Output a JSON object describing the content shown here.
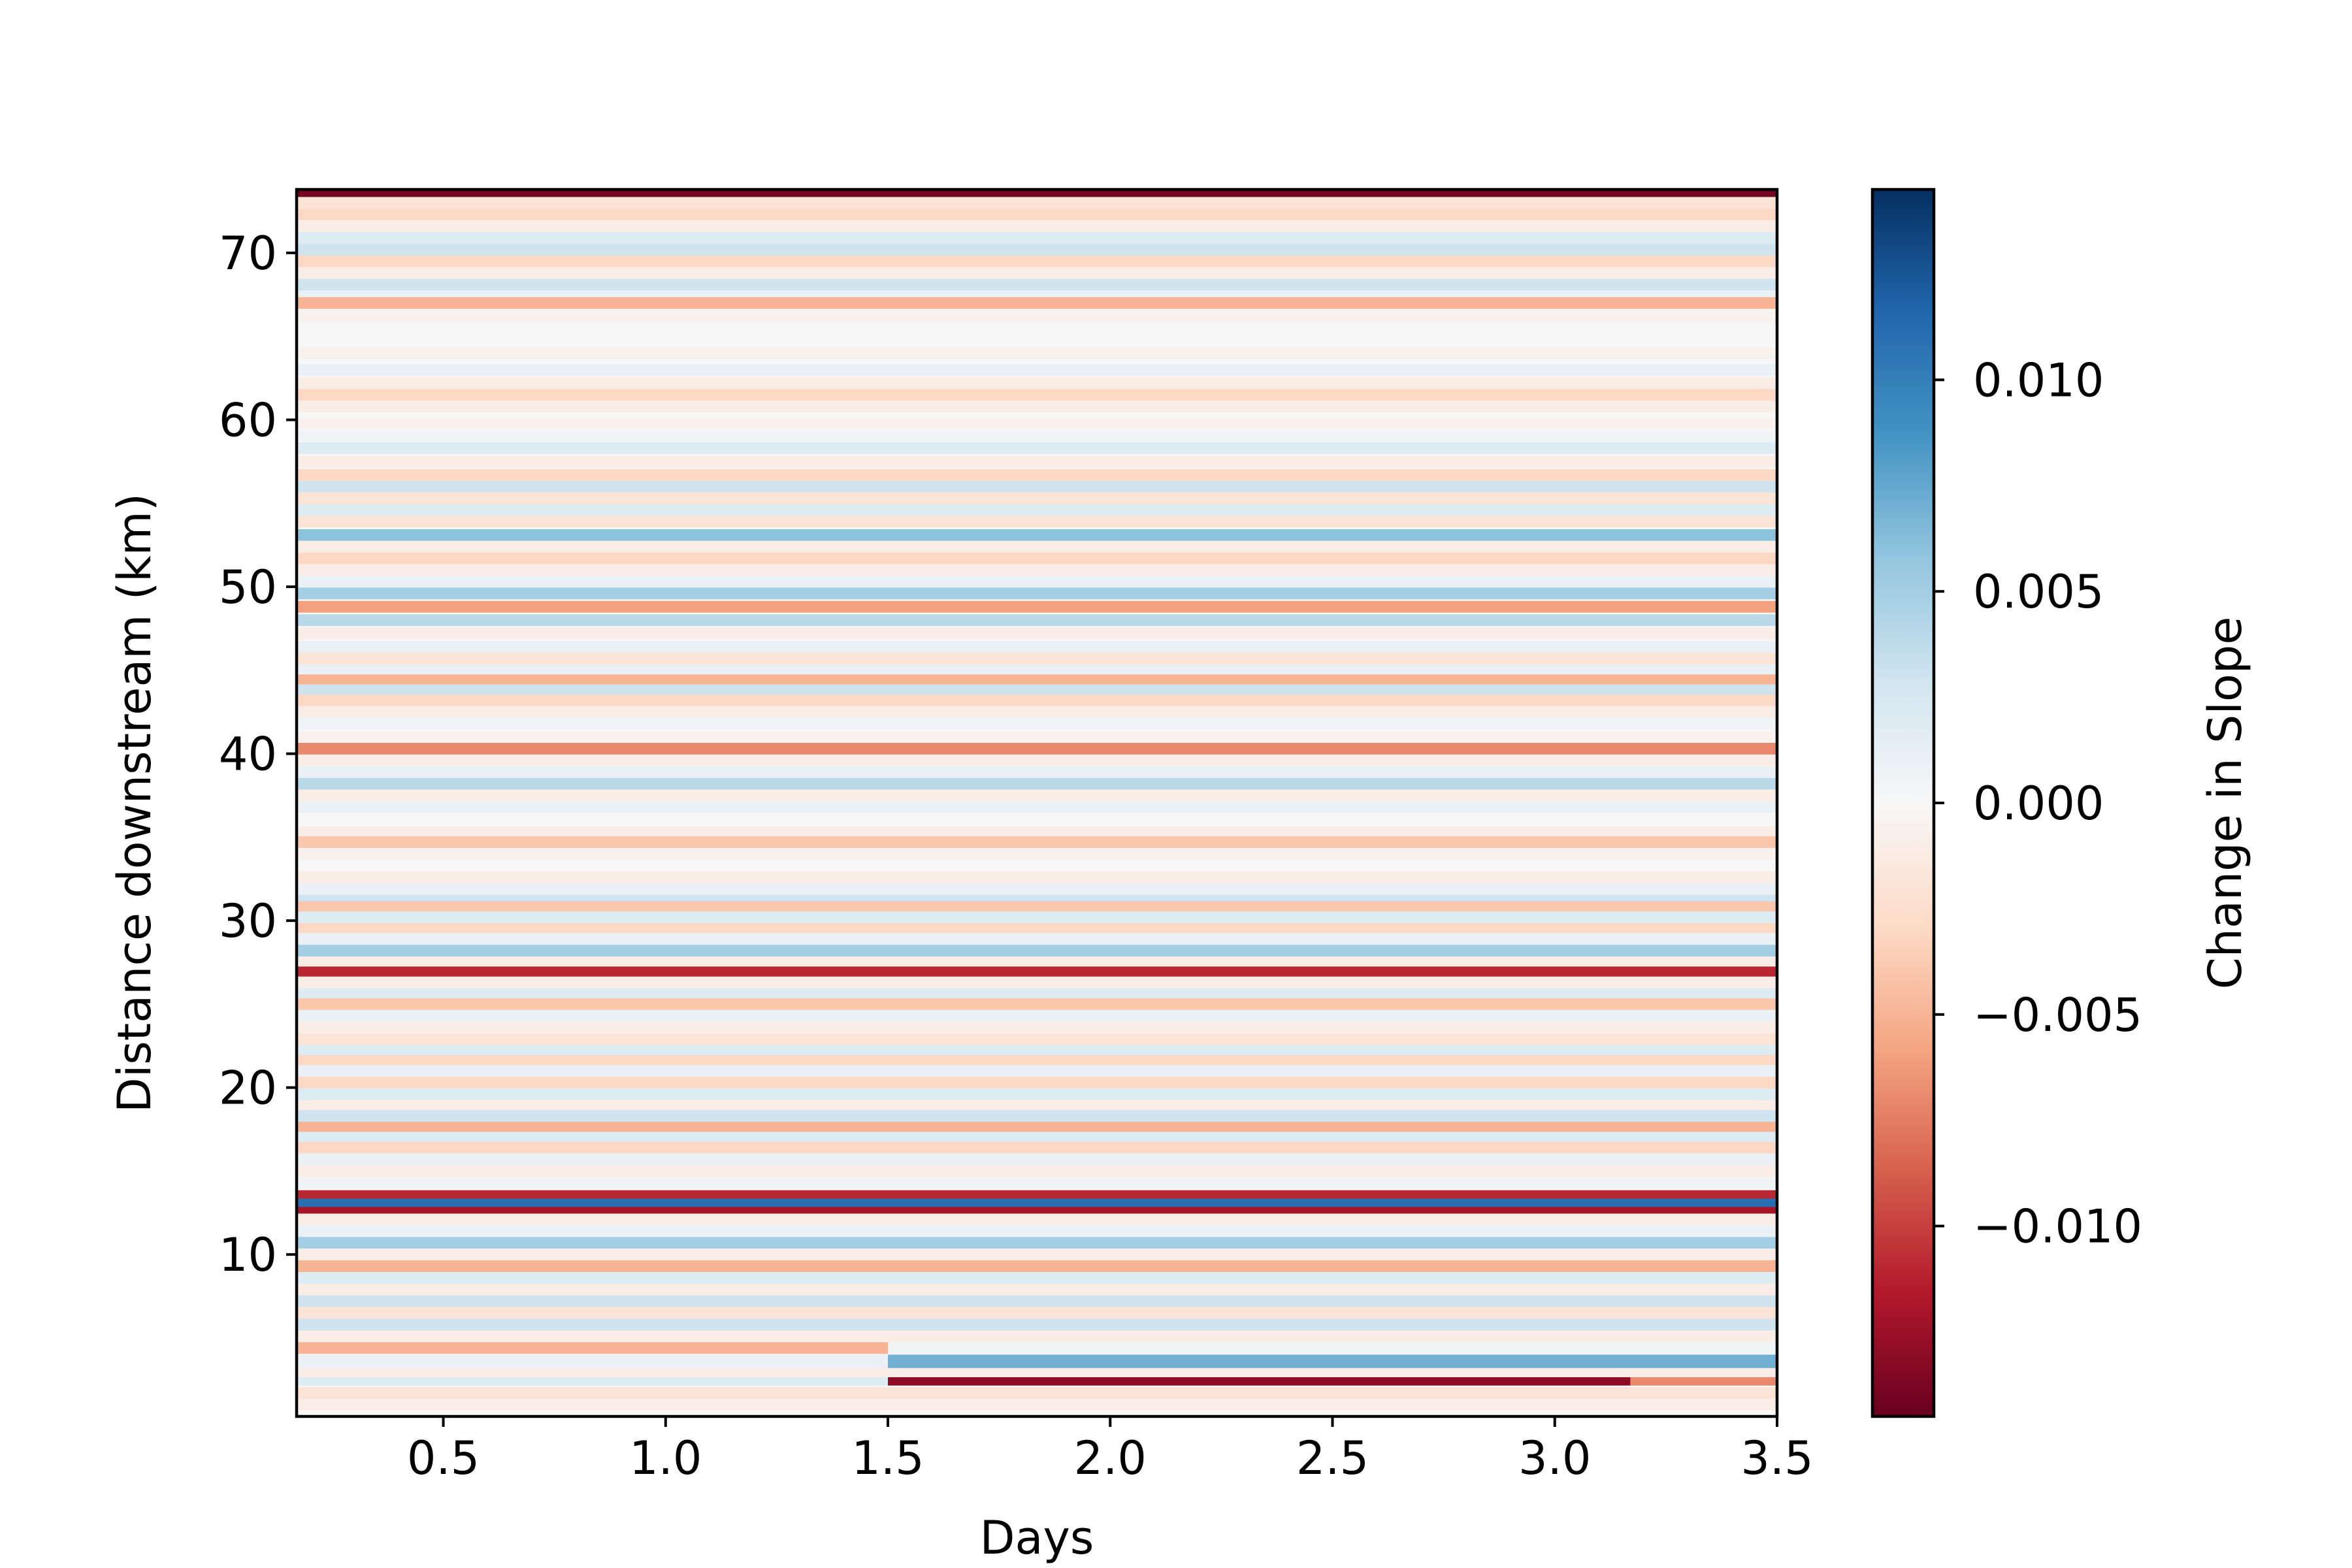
{
  "chart_data": {
    "type": "heatmap",
    "title": "",
    "xlabel": "Days",
    "ylabel": "Distance downstream (km)",
    "xlim": [
      0.17,
      3.5
    ],
    "ylim": [
      0.3,
      73.8
    ],
    "xticks": [
      {
        "value": 0.5,
        "label": "0.5"
      },
      {
        "value": 1.0,
        "label": "1.0"
      },
      {
        "value": 1.5,
        "label": "1.5"
      },
      {
        "value": 2.0,
        "label": "2.0"
      },
      {
        "value": 2.5,
        "label": "2.5"
      },
      {
        "value": 3.0,
        "label": "3.0"
      },
      {
        "value": 3.5,
        "label": "3.5"
      }
    ],
    "yticks": [
      {
        "value": 10,
        "label": "10"
      },
      {
        "value": 20,
        "label": "20"
      },
      {
        "value": 30,
        "label": "30"
      },
      {
        "value": 40,
        "label": "40"
      },
      {
        "value": 50,
        "label": "50"
      },
      {
        "value": 60,
        "label": "60"
      },
      {
        "value": 70,
        "label": "70"
      }
    ],
    "colorbar": {
      "label": "Change in Slope",
      "colormap": "RdBu",
      "range": [
        -0.0145,
        0.0145
      ],
      "stops": [
        "#67001f",
        "#b2182b",
        "#d6604d",
        "#f4a582",
        "#fddbc7",
        "#f7f7f7",
        "#d1e5f0",
        "#92c5de",
        "#4393c3",
        "#2166ac",
        "#053061"
      ],
      "ticks": [
        {
          "value": 0.01,
          "label": "0.010"
        },
        {
          "value": 0.005,
          "label": "0.005"
        },
        {
          "value": 0.0,
          "label": "0.000"
        },
        {
          "value": -0.005,
          "label": "−0.005"
        },
        {
          "value": -0.01,
          "label": "−0.010"
        }
      ]
    },
    "band_height_km": 0.7,
    "bands": [
      {
        "y": 73.5,
        "value": -0.014
      },
      {
        "y": 73.0,
        "value": -0.002
      },
      {
        "y": 72.3,
        "value": -0.003
      },
      {
        "y": 71.6,
        "value": -0.001
      },
      {
        "y": 70.9,
        "value": 0.002
      },
      {
        "y": 70.2,
        "value": 0.003
      },
      {
        "y": 69.5,
        "value": -0.003
      },
      {
        "y": 68.8,
        "value": -0.001
      },
      {
        "y": 68.1,
        "value": 0.003
      },
      {
        "y": 67.4,
        "value": 0.001
      },
      {
        "y": 67.0,
        "value": -0.005
      },
      {
        "y": 66.2,
        "value": -0.0005
      },
      {
        "y": 65.0,
        "value": 0.0
      },
      {
        "y": 64.0,
        "value": -0.0005
      },
      {
        "y": 63.0,
        "value": 0.001
      },
      {
        "y": 62.2,
        "value": -0.001
      },
      {
        "y": 61.5,
        "value": -0.003
      },
      {
        "y": 60.8,
        "value": -0.001
      },
      {
        "y": 59.8,
        "value": -0.0005
      },
      {
        "y": 59.0,
        "value": 0.0005
      },
      {
        "y": 58.3,
        "value": 0.002
      },
      {
        "y": 57.5,
        "value": -0.001
      },
      {
        "y": 56.7,
        "value": -0.003
      },
      {
        "y": 56.0,
        "value": 0.003
      },
      {
        "y": 55.3,
        "value": -0.002
      },
      {
        "y": 54.6,
        "value": 0.002
      },
      {
        "y": 53.9,
        "value": -0.002
      },
      {
        "y": 53.1,
        "value": 0.006
      },
      {
        "y": 52.4,
        "value": -0.001
      },
      {
        "y": 51.7,
        "value": -0.003
      },
      {
        "y": 51.0,
        "value": -0.001
      },
      {
        "y": 50.3,
        "value": 0.001
      },
      {
        "y": 49.6,
        "value": 0.005
      },
      {
        "y": 48.8,
        "value": -0.006
      },
      {
        "y": 48.0,
        "value": 0.004
      },
      {
        "y": 47.2,
        "value": -0.001
      },
      {
        "y": 46.4,
        "value": 0.001
      },
      {
        "y": 45.7,
        "value": -0.002
      },
      {
        "y": 45.0,
        "value": 0.001
      },
      {
        "y": 44.4,
        "value": -0.005
      },
      {
        "y": 43.8,
        "value": 0.003
      },
      {
        "y": 43.2,
        "value": -0.003
      },
      {
        "y": 42.5,
        "value": -0.001
      },
      {
        "y": 41.8,
        "value": 0.0005
      },
      {
        "y": 41.0,
        "value": -0.0005
      },
      {
        "y": 40.3,
        "value": -0.007
      },
      {
        "y": 39.6,
        "value": -0.001
      },
      {
        "y": 38.9,
        "value": 0.001
      },
      {
        "y": 38.2,
        "value": 0.004
      },
      {
        "y": 37.5,
        "value": -0.001
      },
      {
        "y": 36.8,
        "value": 0.001
      },
      {
        "y": 36.0,
        "value": 0.0
      },
      {
        "y": 35.3,
        "value": -0.001
      },
      {
        "y": 34.7,
        "value": -0.004
      },
      {
        "y": 34.0,
        "value": -0.0005
      },
      {
        "y": 33.3,
        "value": 0.0
      },
      {
        "y": 32.6,
        "value": -0.001
      },
      {
        "y": 31.9,
        "value": 0.001
      },
      {
        "y": 31.2,
        "value": 0.003
      },
      {
        "y": 30.8,
        "value": -0.004
      },
      {
        "y": 30.2,
        "value": 0.002
      },
      {
        "y": 29.5,
        "value": -0.003
      },
      {
        "y": 28.9,
        "value": 0.001
      },
      {
        "y": 28.2,
        "value": 0.005
      },
      {
        "y": 27.5,
        "value": -0.001
      },
      {
        "y": 26.9,
        "value": -0.011
      },
      {
        "y": 26.3,
        "value": -0.001
      },
      {
        "y": 25.6,
        "value": 0.002
      },
      {
        "y": 25.0,
        "value": -0.004
      },
      {
        "y": 24.3,
        "value": 0.001
      },
      {
        "y": 23.6,
        "value": -0.001
      },
      {
        "y": 22.9,
        "value": -0.002
      },
      {
        "y": 22.2,
        "value": 0.002
      },
      {
        "y": 21.6,
        "value": -0.003
      },
      {
        "y": 21.0,
        "value": 0.001
      },
      {
        "y": 20.3,
        "value": -0.003
      },
      {
        "y": 19.6,
        "value": 0.002
      },
      {
        "y": 18.9,
        "value": -0.001
      },
      {
        "y": 18.3,
        "value": 0.003
      },
      {
        "y": 17.6,
        "value": -0.005
      },
      {
        "y": 17.0,
        "value": 0.002
      },
      {
        "y": 16.4,
        "value": -0.003
      },
      {
        "y": 15.7,
        "value": 0.001
      },
      {
        "y": 15.0,
        "value": -0.001
      },
      {
        "y": 14.3,
        "value": 0.0005
      },
      {
        "y": 13.5,
        "value": -0.011
      },
      {
        "y": 13.0,
        "value": 0.011
      },
      {
        "y": 12.5,
        "value": -0.012
      },
      {
        "y": 12.1,
        "value": -0.001
      },
      {
        "y": 11.4,
        "value": 0.001
      },
      {
        "y": 10.7,
        "value": 0.005
      },
      {
        "y": 10.0,
        "value": -0.001
      },
      {
        "y": 9.3,
        "value": -0.005
      },
      {
        "y": 8.6,
        "value": 0.002
      },
      {
        "y": 7.9,
        "value": -0.001
      },
      {
        "y": 7.2,
        "value": 0.003
      },
      {
        "y": 6.5,
        "value": -0.002
      },
      {
        "y": 5.8,
        "value": 0.003
      },
      {
        "y": 5.1,
        "value": -0.001
      },
      {
        "y": 3.0,
        "value": -0.001
      },
      {
        "y": 1.7,
        "value": -0.002
      },
      {
        "y": 1.0,
        "value": -0.001
      }
    ],
    "segments": [
      {
        "y": 4.4,
        "h": 0.7,
        "x0": 0.17,
        "x1": 1.5,
        "value": -0.005
      },
      {
        "y": 4.4,
        "h": 0.7,
        "x0": 1.5,
        "x1": 3.5,
        "value": 0.0005
      },
      {
        "y": 3.6,
        "h": 0.8,
        "x0": 0.17,
        "x1": 1.5,
        "value": 0.001
      },
      {
        "y": 3.6,
        "h": 0.8,
        "x0": 1.5,
        "x1": 3.5,
        "value": 0.007
      },
      {
        "y": 2.4,
        "h": 0.5,
        "x0": 0.17,
        "x1": 1.5,
        "value": 0.002
      },
      {
        "y": 2.4,
        "h": 0.5,
        "x0": 1.5,
        "x1": 3.17,
        "value": -0.013
      },
      {
        "y": 2.4,
        "h": 0.5,
        "x0": 3.17,
        "x1": 3.5,
        "value": -0.007
      }
    ]
  }
}
